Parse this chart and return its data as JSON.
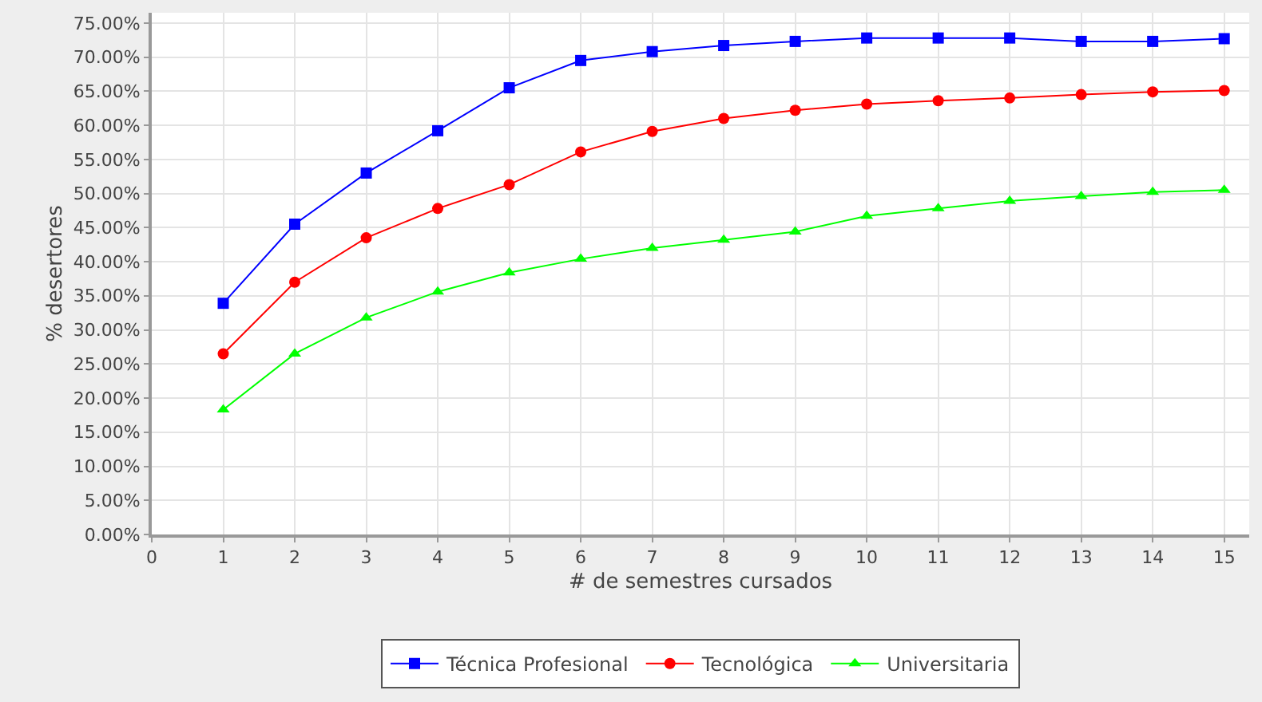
{
  "chart_data": {
    "type": "line",
    "xlabel": "# de semestres cursados",
    "ylabel": "% desertores",
    "x": [
      1,
      2,
      3,
      4,
      5,
      6,
      7,
      8,
      9,
      10,
      11,
      12,
      13,
      14,
      15
    ],
    "series": [
      {
        "name": "Técnica Profesional",
        "color": "#0000ff",
        "marker": "square",
        "values": [
          33.9,
          45.5,
          53.0,
          59.2,
          65.5,
          69.5,
          70.8,
          71.7,
          72.3,
          72.8,
          72.8,
          72.8,
          72.3,
          72.3,
          72.7
        ]
      },
      {
        "name": "Tecnológica",
        "color": "#ff0000",
        "marker": "circle",
        "values": [
          26.5,
          37.0,
          43.5,
          47.8,
          51.3,
          56.1,
          59.1,
          61.0,
          62.2,
          63.1,
          63.6,
          64.0,
          64.5,
          64.9,
          65.1
        ]
      },
      {
        "name": "Universitaria",
        "color": "#00ff00",
        "marker": "triangle",
        "values": [
          18.3,
          26.5,
          31.8,
          35.6,
          38.4,
          40.4,
          42.0,
          43.2,
          44.4,
          46.7,
          47.8,
          48.9,
          49.6,
          50.2,
          50.5
        ]
      }
    ],
    "xlim": [
      0,
      15.35
    ],
    "xticks": [
      0,
      1,
      2,
      3,
      4,
      5,
      6,
      7,
      8,
      9,
      10,
      11,
      12,
      13,
      14,
      15
    ],
    "ylim": [
      0,
      76.5
    ],
    "yticks": [
      {
        "value": 0,
        "label": "0.00%"
      },
      {
        "value": 5,
        "label": "5.00%"
      },
      {
        "value": 10,
        "label": "10.00%"
      },
      {
        "value": 15,
        "label": "15.00%"
      },
      {
        "value": 20,
        "label": "20.00%"
      },
      {
        "value": 25,
        "label": "25.00%"
      },
      {
        "value": 30,
        "label": "30.00%"
      },
      {
        "value": 35,
        "label": "35.00%"
      },
      {
        "value": 40,
        "label": "40.00%"
      },
      {
        "value": 45,
        "label": "45.00%"
      },
      {
        "value": 50,
        "label": "50.00%"
      },
      {
        "value": 55,
        "label": "55.00%"
      },
      {
        "value": 60,
        "label": "60.00%"
      },
      {
        "value": 65,
        "label": "65.00%"
      },
      {
        "value": 70,
        "label": "70.00%"
      },
      {
        "value": 75,
        "label": "75.00%"
      }
    ],
    "grid": true,
    "legend": "bottom",
    "line_style": "solid"
  }
}
